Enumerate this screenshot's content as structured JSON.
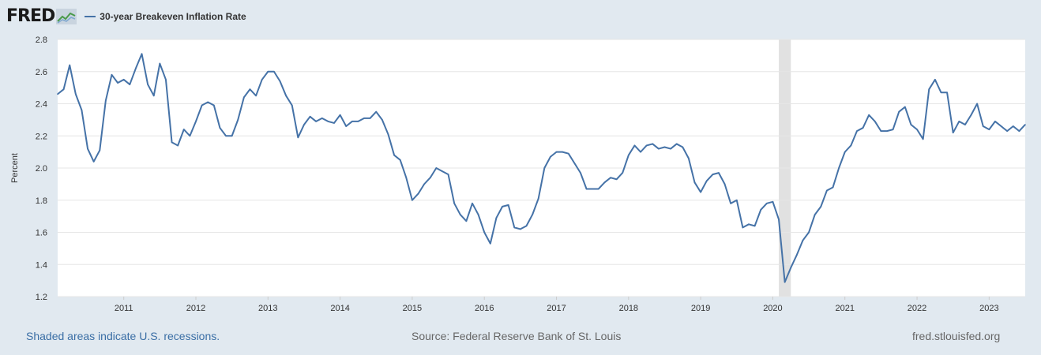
{
  "header": {
    "logo_text": "FRED",
    "legend_label": "30-year Breakeven Inflation Rate"
  },
  "footer": {
    "recession_note": "Shaded areas indicate U.S. recessions.",
    "source": "Source: Federal Reserve Bank of St. Louis",
    "site": "fred.stlouisfed.org"
  },
  "colors": {
    "line": "#4572a7",
    "background": "#e1e9f0",
    "plot": "#ffffff",
    "recession": "#e1e1e1"
  },
  "chart_data": {
    "type": "line",
    "title": "",
    "xlabel": "",
    "ylabel": "Percent",
    "ylim": [
      1.2,
      2.8
    ],
    "yticks": [
      "1.2",
      "1.4",
      "1.6",
      "1.8",
      "2.0",
      "2.2",
      "2.4",
      "2.6",
      "2.8"
    ],
    "xticks": [
      "2011",
      "2012",
      "2013",
      "2014",
      "2015",
      "2016",
      "2017",
      "2018",
      "2019",
      "2020",
      "2021",
      "2022",
      "2023"
    ],
    "grid": true,
    "x_start": "2010-02",
    "x_end": "2023-07",
    "recessions": [
      {
        "start": "2020-02",
        "end": "2020-04"
      }
    ],
    "series": [
      {
        "name": "30-year Breakeven Inflation Rate",
        "x": [
          "2010-02",
          "2010-03",
          "2010-04",
          "2010-05",
          "2010-06",
          "2010-07",
          "2010-08",
          "2010-09",
          "2010-10",
          "2010-11",
          "2010-12",
          "2011-01",
          "2011-02",
          "2011-03",
          "2011-04",
          "2011-05",
          "2011-06",
          "2011-07",
          "2011-08",
          "2011-09",
          "2011-10",
          "2011-11",
          "2011-12",
          "2012-01",
          "2012-02",
          "2012-03",
          "2012-04",
          "2012-05",
          "2012-06",
          "2012-07",
          "2012-08",
          "2012-09",
          "2012-10",
          "2012-11",
          "2012-12",
          "2013-01",
          "2013-02",
          "2013-03",
          "2013-04",
          "2013-05",
          "2013-06",
          "2013-07",
          "2013-08",
          "2013-09",
          "2013-10",
          "2013-11",
          "2013-12",
          "2014-01",
          "2014-02",
          "2014-03",
          "2014-04",
          "2014-05",
          "2014-06",
          "2014-07",
          "2014-08",
          "2014-09",
          "2014-10",
          "2014-11",
          "2014-12",
          "2015-01",
          "2015-02",
          "2015-03",
          "2015-04",
          "2015-05",
          "2015-06",
          "2015-07",
          "2015-08",
          "2015-09",
          "2015-10",
          "2015-11",
          "2015-12",
          "2016-01",
          "2016-02",
          "2016-03",
          "2016-04",
          "2016-05",
          "2016-06",
          "2016-07",
          "2016-08",
          "2016-09",
          "2016-10",
          "2016-11",
          "2016-12",
          "2017-01",
          "2017-02",
          "2017-03",
          "2017-04",
          "2017-05",
          "2017-06",
          "2017-07",
          "2017-08",
          "2017-09",
          "2017-10",
          "2017-11",
          "2017-12",
          "2018-01",
          "2018-02",
          "2018-03",
          "2018-04",
          "2018-05",
          "2018-06",
          "2018-07",
          "2018-08",
          "2018-09",
          "2018-10",
          "2018-11",
          "2018-12",
          "2019-01",
          "2019-02",
          "2019-03",
          "2019-04",
          "2019-05",
          "2019-06",
          "2019-07",
          "2019-08",
          "2019-09",
          "2019-10",
          "2019-11",
          "2019-12",
          "2020-01",
          "2020-02",
          "2020-03",
          "2020-04",
          "2020-05",
          "2020-06",
          "2020-07",
          "2020-08",
          "2020-09",
          "2020-10",
          "2020-11",
          "2020-12",
          "2021-01",
          "2021-02",
          "2021-03",
          "2021-04",
          "2021-05",
          "2021-06",
          "2021-07",
          "2021-08",
          "2021-09",
          "2021-10",
          "2021-11",
          "2021-12",
          "2022-01",
          "2022-02",
          "2022-03",
          "2022-04",
          "2022-05",
          "2022-06",
          "2022-07",
          "2022-08",
          "2022-09",
          "2022-10",
          "2022-11",
          "2022-12",
          "2023-01",
          "2023-02",
          "2023-03",
          "2023-04",
          "2023-05",
          "2023-06",
          "2023-07"
        ],
        "values": [
          2.46,
          2.49,
          2.64,
          2.46,
          2.36,
          2.12,
          2.04,
          2.11,
          2.42,
          2.58,
          2.53,
          2.55,
          2.52,
          2.62,
          2.71,
          2.52,
          2.45,
          2.65,
          2.55,
          2.16,
          2.14,
          2.24,
          2.2,
          2.29,
          2.39,
          2.41,
          2.39,
          2.25,
          2.2,
          2.2,
          2.3,
          2.44,
          2.49,
          2.45,
          2.55,
          2.6,
          2.6,
          2.54,
          2.45,
          2.39,
          2.19,
          2.27,
          2.32,
          2.29,
          2.31,
          2.29,
          2.28,
          2.33,
          2.26,
          2.29,
          2.29,
          2.31,
          2.31,
          2.35,
          2.3,
          2.21,
          2.08,
          2.05,
          1.94,
          1.8,
          1.84,
          1.9,
          1.94,
          2.0,
          1.98,
          1.96,
          1.78,
          1.71,
          1.67,
          1.78,
          1.71,
          1.6,
          1.53,
          1.69,
          1.76,
          1.77,
          1.63,
          1.62,
          1.64,
          1.71,
          1.81,
          2.0,
          2.07,
          2.1,
          2.1,
          2.09,
          2.03,
          1.97,
          1.87,
          1.87,
          1.87,
          1.91,
          1.94,
          1.93,
          1.97,
          2.08,
          2.14,
          2.1,
          2.14,
          2.15,
          2.12,
          2.13,
          2.12,
          2.15,
          2.13,
          2.06,
          1.91,
          1.85,
          1.92,
          1.96,
          1.97,
          1.9,
          1.78,
          1.8,
          1.63,
          1.65,
          1.64,
          1.74,
          1.78,
          1.79,
          1.68,
          1.29,
          1.38,
          1.46,
          1.55,
          1.6,
          1.71,
          1.76,
          1.86,
          1.88,
          2.0,
          2.1,
          2.14,
          2.23,
          2.25,
          2.33,
          2.29,
          2.23,
          2.23,
          2.24,
          2.35,
          2.38,
          2.27,
          2.24,
          2.18,
          2.49,
          2.55,
          2.47,
          2.47,
          2.22,
          2.29,
          2.27,
          2.33,
          2.4,
          2.26,
          2.24,
          2.29,
          2.26,
          2.23,
          2.26,
          2.23,
          2.27
        ]
      }
    ]
  }
}
